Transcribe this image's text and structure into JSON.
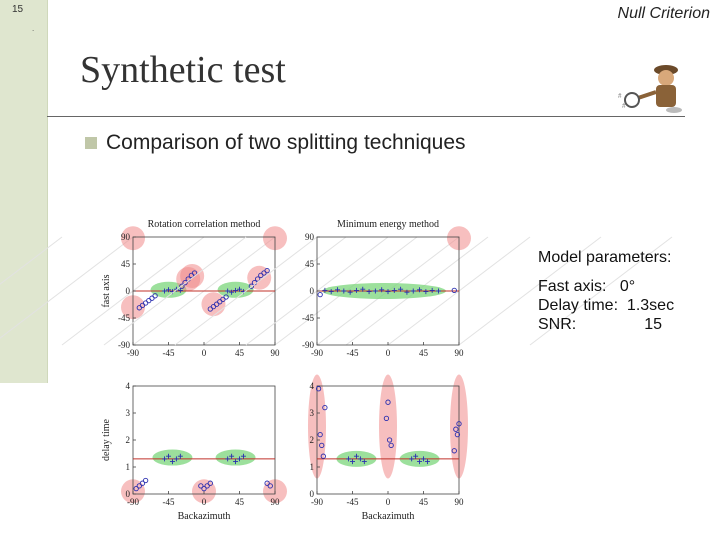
{
  "slide": {
    "page_number": "15",
    "dot": ".",
    "corner_label": "Null Criterion",
    "title": "Synthetic test",
    "bullet": "Comparison of two splitting techniques"
  },
  "params": {
    "heading": "Model parameters:",
    "fast_axis_label": "Fast axis:",
    "fast_axis_value": "0°",
    "delay_label": "Delay time:",
    "delay_value": "1.3sec",
    "snr_label": "SNR:",
    "snr_value": "15"
  },
  "colors": {
    "marker": "#2b2fb0",
    "red_line": "#c0302a",
    "green_blob": "#7bd67b",
    "pink_blob": "#f08a8a"
  },
  "chart_data": [
    {
      "type": "scatter",
      "id": "rc-fast",
      "title": "Rotation correlation method",
      "ylabel": "fast axis",
      "xlabel": "",
      "xlim": [
        -90,
        90
      ],
      "ylim": [
        -90,
        90
      ],
      "xticks": [
        "-90",
        "-45",
        "0",
        "45",
        "90"
      ],
      "yticks": [
        "90",
        "45",
        "0",
        "-45",
        "-90"
      ],
      "reference_line": 0,
      "series": [
        {
          "marker": "o",
          "x": [
            -82,
            -78,
            -74,
            -70,
            -66,
            -62,
            8,
            12,
            16,
            20,
            24,
            28
          ],
          "y": [
            -28,
            -24,
            -20,
            -16,
            -12,
            -8,
            -30,
            -26,
            -22,
            -18,
            -14,
            -10
          ]
        },
        {
          "marker": "o",
          "x": [
            -28,
            -24,
            -20,
            -16,
            -12,
            60,
            64,
            68,
            72,
            76,
            80
          ],
          "y": [
            8,
            14,
            20,
            26,
            30,
            8,
            14,
            20,
            26,
            30,
            34
          ]
        },
        {
          "marker": "+",
          "x": [
            -50,
            -45,
            -40,
            -35,
            -30,
            30,
            35,
            40,
            45,
            50
          ],
          "y": [
            0,
            2,
            -1,
            3,
            1,
            0,
            -2,
            1,
            3,
            -1
          ]
        }
      ]
    },
    {
      "type": "scatter",
      "id": "me-fast",
      "title": "Minimum energy method",
      "ylabel": "",
      "xlabel": "",
      "xlim": [
        -90,
        90
      ],
      "ylim": [
        -90,
        90
      ],
      "xticks": [
        "-90",
        "-45",
        "0",
        "45",
        "90"
      ],
      "yticks": [
        "90",
        "45",
        "0",
        "-45",
        "-90"
      ],
      "reference_line": 0,
      "series": [
        {
          "marker": "+",
          "x": [
            -80,
            -72,
            -64,
            -56,
            -48,
            -40,
            -32,
            -24,
            -16,
            -8,
            0,
            8,
            16,
            24,
            32,
            40,
            48,
            56,
            64
          ],
          "y": [
            1,
            -1,
            2,
            0,
            -2,
            1,
            3,
            -1,
            0,
            2,
            -1,
            1,
            3,
            -2,
            0,
            2,
            -1,
            1,
            0
          ]
        },
        {
          "marker": "o",
          "x": [
            -86,
            84
          ],
          "y": [
            -6,
            1
          ]
        }
      ]
    },
    {
      "type": "scatter",
      "id": "rc-delay",
      "title": "",
      "ylabel": "delay time",
      "xlabel": "Backazimuth",
      "xlim": [
        -90,
        90
      ],
      "ylim": [
        0,
        4
      ],
      "xticks": [
        "-90",
        "-45",
        "0",
        "45",
        "90"
      ],
      "yticks": [
        "4",
        "3",
        "2",
        "1",
        "0"
      ],
      "reference_line": 1.3,
      "series": [
        {
          "marker": "o",
          "x": [
            -86,
            -82,
            -78,
            -74,
            -4,
            0,
            4,
            8,
            80,
            84
          ],
          "y": [
            0.2,
            0.3,
            0.4,
            0.5,
            0.3,
            0.2,
            0.3,
            0.4,
            0.4,
            0.3
          ]
        },
        {
          "marker": "+",
          "x": [
            -50,
            -45,
            -40,
            -35,
            -30,
            30,
            35,
            40,
            45,
            50
          ],
          "y": [
            1.3,
            1.4,
            1.2,
            1.3,
            1.4,
            1.3,
            1.4,
            1.2,
            1.3,
            1.4
          ]
        }
      ]
    },
    {
      "type": "scatter",
      "id": "me-delay",
      "title": "",
      "ylabel": "",
      "xlabel": "Backazimuth",
      "xlim": [
        -90,
        90
      ],
      "ylim": [
        0,
        4
      ],
      "xticks": [
        "-90",
        "-45",
        "0",
        "45",
        "90"
      ],
      "yticks": [
        "4",
        "3",
        "2",
        "1",
        "0"
      ],
      "reference_line": 1.3,
      "series": [
        {
          "marker": "o",
          "x": [
            -88,
            -86,
            -84,
            -82,
            -80,
            -2,
            0,
            2,
            4,
            84,
            86,
            88,
            90
          ],
          "y": [
            3.9,
            2.2,
            1.8,
            1.4,
            3.2,
            2.8,
            3.4,
            2.0,
            1.8,
            1.6,
            2.4,
            2.2,
            2.6
          ]
        },
        {
          "marker": "+",
          "x": [
            -50,
            -45,
            -40,
            -35,
            -30,
            30,
            35,
            40,
            45,
            50
          ],
          "y": [
            1.3,
            1.2,
            1.4,
            1.3,
            1.2,
            1.3,
            1.4,
            1.2,
            1.3,
            1.2
          ]
        }
      ]
    }
  ]
}
